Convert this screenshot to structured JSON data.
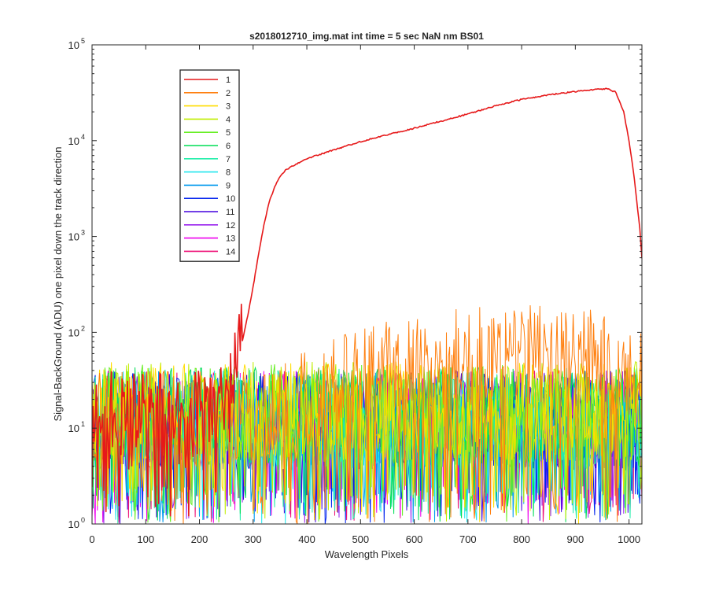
{
  "chart_data": {
    "type": "line",
    "title": "s2018012710_img.mat int time = 5 sec  NaN nm BS01",
    "xlabel": "Wavelength Pixels",
    "ylabel": "Signal-BackGround (ADU) one pixel down the track direction",
    "xlim": [
      0,
      1024
    ],
    "ylim": [
      1,
      100000
    ],
    "yscale": "log",
    "grid": false,
    "legend_position": "top-left",
    "x_ticks": [
      0,
      100,
      200,
      300,
      400,
      500,
      600,
      700,
      800,
      900,
      1000
    ],
    "y_ticks": [
      {
        "value": 1,
        "base": "10",
        "exp": "0"
      },
      {
        "value": 10,
        "base": "10",
        "exp": "1"
      },
      {
        "value": 100,
        "base": "10",
        "exp": "2"
      },
      {
        "value": 1000,
        "base": "10",
        "exp": "3"
      },
      {
        "value": 10000,
        "base": "10",
        "exp": "4"
      },
      {
        "value": 100000,
        "base": "10",
        "exp": "5"
      }
    ],
    "series": [
      {
        "name": "1",
        "color": "#e6191a",
        "x": [
          0,
          100,
          200,
          250,
          262,
          275,
          290,
          300,
          310,
          320,
          330,
          340,
          350,
          360,
          375,
          400,
          450,
          500,
          550,
          600,
          650,
          700,
          750,
          800,
          850,
          900,
          935,
          960,
          975,
          990,
          1000,
          1010,
          1020,
          1024
        ],
        "y": [
          12,
          12,
          12,
          14,
          25,
          60,
          150,
          300,
          650,
          1300,
          2300,
          3300,
          4200,
          4900,
          5500,
          6500,
          8000,
          9800,
          11500,
          13500,
          16000,
          19000,
          23000,
          27000,
          30000,
          32500,
          34000,
          35000,
          32000,
          20000,
          10000,
          4000,
          1200,
          600
        ]
      },
      {
        "name": "2",
        "color": "#ff7f0e",
        "x": [
          0,
          100,
          200,
          300,
          350,
          400,
          450,
          500,
          550,
          600,
          650,
          700,
          750,
          800,
          850,
          900,
          950,
          1000,
          1024
        ],
        "y": [
          12,
          12,
          12,
          12,
          14,
          20,
          26,
          34,
          40,
          46,
          50,
          55,
          58,
          60,
          58,
          55,
          50,
          40,
          35
        ]
      },
      {
        "name": "3",
        "color": "#ffdd00",
        "x": [
          0,
          1024
        ],
        "y": [
          15,
          15
        ]
      },
      {
        "name": "4",
        "color": "#c0ee00",
        "x": [
          0,
          1024
        ],
        "y": [
          15,
          15
        ]
      },
      {
        "name": "5",
        "color": "#66ee22",
        "x": [
          0,
          1024
        ],
        "y": [
          14,
          14
        ]
      },
      {
        "name": "6",
        "color": "#00dd55",
        "x": [
          0,
          1024
        ],
        "y": [
          13,
          13
        ]
      },
      {
        "name": "7",
        "color": "#22eeaa",
        "x": [
          0,
          1024
        ],
        "y": [
          13,
          13
        ]
      },
      {
        "name": "8",
        "color": "#22e6ee",
        "x": [
          0,
          1024
        ],
        "y": [
          12,
          12
        ]
      },
      {
        "name": "9",
        "color": "#0099ee",
        "x": [
          0,
          1024
        ],
        "y": [
          12,
          12
        ]
      },
      {
        "name": "10",
        "color": "#0022ee",
        "x": [
          0,
          1024
        ],
        "y": [
          12,
          12
        ]
      },
      {
        "name": "11",
        "color": "#4400dd",
        "x": [
          0,
          1024
        ],
        "y": [
          12,
          12
        ]
      },
      {
        "name": "12",
        "color": "#9922ee",
        "x": [
          0,
          1024
        ],
        "y": [
          12,
          12
        ]
      },
      {
        "name": "13",
        "color": "#ee00ee",
        "x": [
          0,
          1024
        ],
        "y": [
          12,
          12
        ]
      },
      {
        "name": "14",
        "color": "#ee1177",
        "x": [
          0,
          1024
        ],
        "y": [
          12,
          12
        ]
      }
    ]
  }
}
